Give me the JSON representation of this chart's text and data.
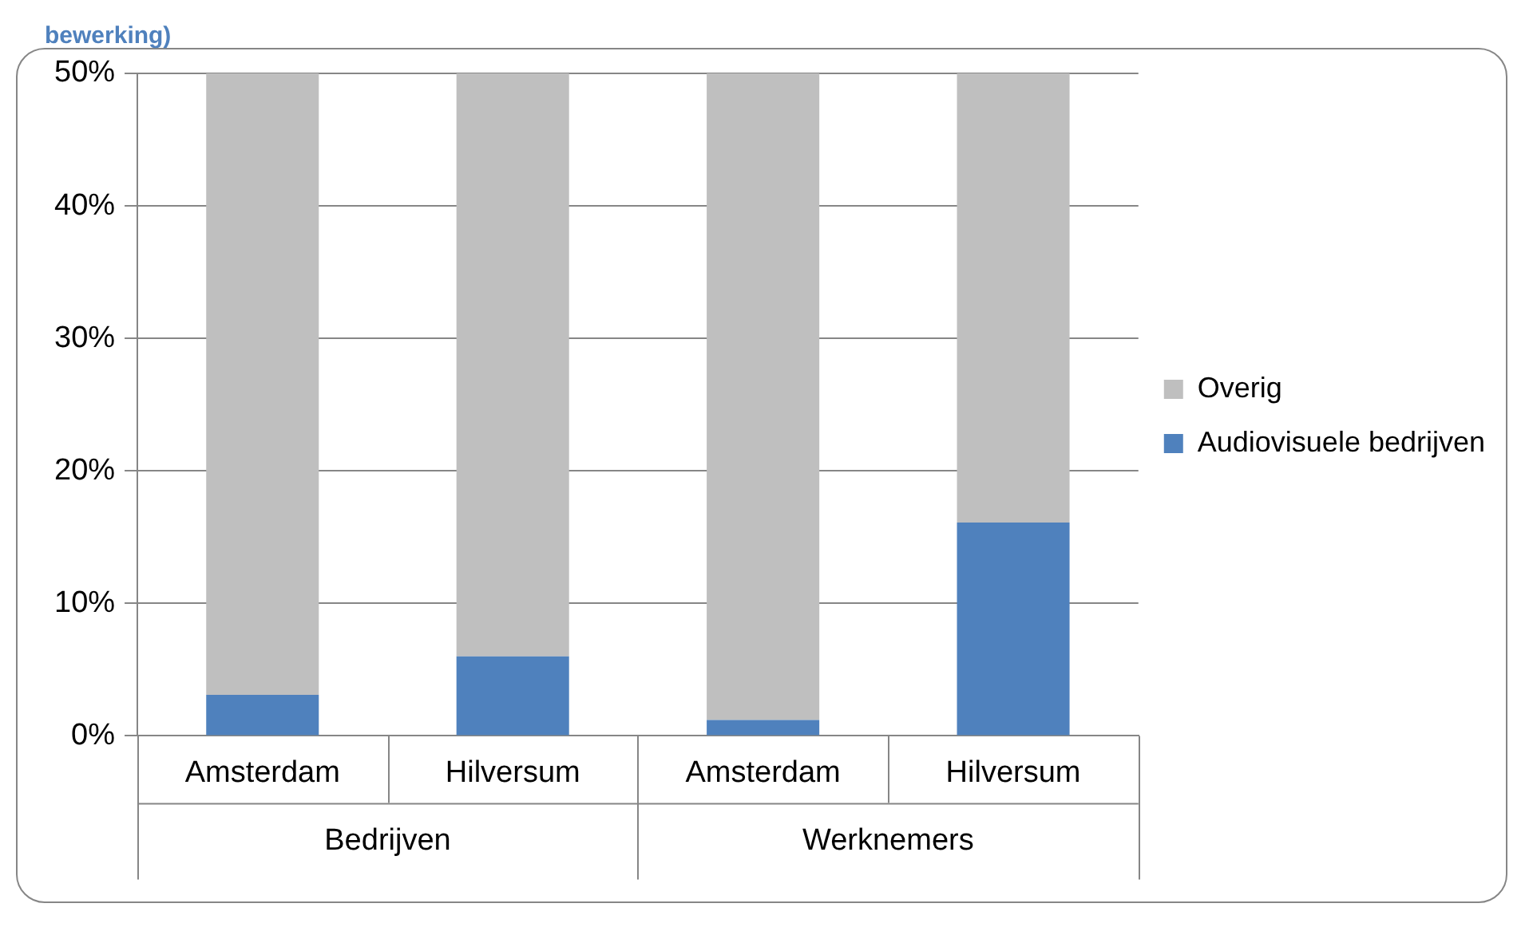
{
  "chart_data": {
    "type": "bar",
    "title": "bewerking)",
    "categories": [
      "Amsterdam",
      "Hilversum",
      "Amsterdam",
      "Hilversum"
    ],
    "series": [
      {
        "name": "Audiovisuele bedrijven",
        "color": "#4f81bd",
        "values": [
          3.1,
          6.0,
          1.2,
          16.1
        ]
      },
      {
        "name": "Overig",
        "color": "#bfbfbf",
        "values": [
          46.9,
          44.0,
          48.8,
          33.9
        ]
      }
    ],
    "stacked": true,
    "ylim": [
      0,
      50
    ],
    "yticks": [
      {
        "value": 0,
        "label": "0%"
      },
      {
        "value": 10,
        "label": "10%"
      },
      {
        "value": 20,
        "label": "20%"
      },
      {
        "value": 30,
        "label": "30%"
      },
      {
        "value": 40,
        "label": "40%"
      },
      {
        "value": 50,
        "label": "50%"
      }
    ],
    "grid": "y",
    "legend": "right",
    "annotations": [
      "Bedrijven",
      "Werknemers"
    ]
  }
}
